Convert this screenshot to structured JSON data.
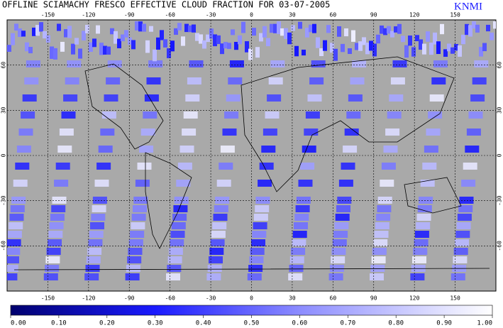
{
  "map": {
    "title": "OFFLINE SCIAMACHY FRESCO EFFECTIVE CLOUD FRACTION FOR 03-07-2005",
    "logo": "KNMI",
    "lon_ticks": [
      -150,
      -120,
      -90,
      -60,
      -30,
      0,
      30,
      60,
      90,
      120,
      150
    ],
    "lat_ticks": [
      60,
      30,
      0,
      -30,
      -60
    ],
    "colorbar_ticks": [
      {
        "value": 0,
        "label": "0.00"
      },
      {
        "value": 0.1,
        "label": "0.10"
      },
      {
        "value": 0.2,
        "label": "0.20"
      },
      {
        "value": 0.3,
        "label": "0.30"
      },
      {
        "value": 0.4,
        "label": "0.40"
      },
      {
        "value": 0.5,
        "label": "0.50"
      },
      {
        "value": 0.6,
        "label": "0.60"
      },
      {
        "value": 0.7,
        "label": "0.70"
      },
      {
        "value": 0.8,
        "label": "0.80"
      },
      {
        "value": 0.9,
        "label": "0.90"
      },
      {
        "value": 1,
        "label": "1.00"
      }
    ]
  }
}
